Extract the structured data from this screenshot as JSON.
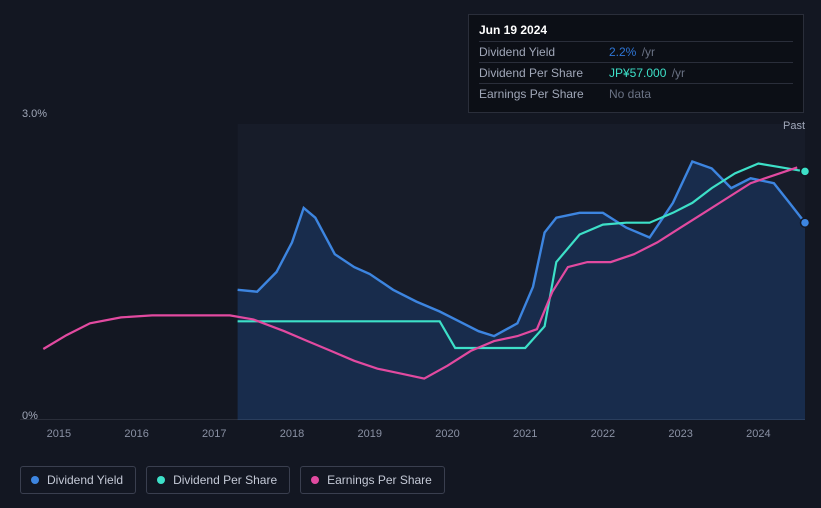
{
  "tooltip": {
    "date": "Jun 19 2024",
    "rows": [
      {
        "label": "Dividend Yield",
        "value": "2.2%",
        "unit": "/yr",
        "valueClass": "val-blue"
      },
      {
        "label": "Dividend Per Share",
        "value": "JP¥57.000",
        "unit": "/yr",
        "valueClass": "val-cyan"
      },
      {
        "label": "Earnings Per Share",
        "value": "No data",
        "unit": "",
        "valueClass": "val-nodata"
      }
    ]
  },
  "chart": {
    "y_top_label": "3.0%",
    "y_bot_label": "0%",
    "past_label": "Past",
    "x_range": [
      2014.5,
      2024.6
    ],
    "y_range": [
      0,
      3.0
    ],
    "x_ticks": [
      "2015",
      "2016",
      "2017",
      "2018",
      "2019",
      "2020",
      "2021",
      "2022",
      "2023",
      "2024"
    ],
    "shaded_from": 2017.3,
    "colors": {
      "yield": "#3d85e0",
      "dps": "#3de0c8",
      "eps": "#e24aa0",
      "yield_area": "rgba(33,105,200,0.22)",
      "grid": "#2a2e3a",
      "bg": "#131722"
    },
    "series": {
      "dividend_yield": [
        [
          2017.3,
          1.32
        ],
        [
          2017.55,
          1.3
        ],
        [
          2017.8,
          1.5
        ],
        [
          2018.0,
          1.8
        ],
        [
          2018.15,
          2.15
        ],
        [
          2018.3,
          2.05
        ],
        [
          2018.55,
          1.68
        ],
        [
          2018.8,
          1.55
        ],
        [
          2019.0,
          1.48
        ],
        [
          2019.3,
          1.32
        ],
        [
          2019.6,
          1.2
        ],
        [
          2019.9,
          1.1
        ],
        [
          2020.15,
          1.0
        ],
        [
          2020.4,
          0.9
        ],
        [
          2020.6,
          0.85
        ],
        [
          2020.9,
          0.98
        ],
        [
          2021.1,
          1.35
        ],
        [
          2021.25,
          1.9
        ],
        [
          2021.4,
          2.05
        ],
        [
          2021.7,
          2.1
        ],
        [
          2022.0,
          2.1
        ],
        [
          2022.3,
          1.95
        ],
        [
          2022.6,
          1.85
        ],
        [
          2022.9,
          2.2
        ],
        [
          2023.15,
          2.62
        ],
        [
          2023.4,
          2.55
        ],
        [
          2023.65,
          2.35
        ],
        [
          2023.9,
          2.45
        ],
        [
          2024.2,
          2.4
        ],
        [
          2024.4,
          2.2
        ],
        [
          2024.55,
          2.05
        ],
        [
          2024.6,
          2.0
        ]
      ],
      "dividend_per_share": [
        [
          2017.3,
          1.0
        ],
        [
          2018.0,
          1.0
        ],
        [
          2018.8,
          1.0
        ],
        [
          2019.5,
          1.0
        ],
        [
          2019.9,
          1.0
        ],
        [
          2020.1,
          0.73
        ],
        [
          2020.6,
          0.73
        ],
        [
          2021.0,
          0.73
        ],
        [
          2021.25,
          0.95
        ],
        [
          2021.4,
          1.6
        ],
        [
          2021.7,
          1.88
        ],
        [
          2022.0,
          1.98
        ],
        [
          2022.3,
          2.0
        ],
        [
          2022.6,
          2.0
        ],
        [
          2022.9,
          2.1
        ],
        [
          2023.15,
          2.2
        ],
        [
          2023.4,
          2.35
        ],
        [
          2023.7,
          2.5
        ],
        [
          2024.0,
          2.6
        ],
        [
          2024.3,
          2.56
        ],
        [
          2024.6,
          2.52
        ]
      ],
      "earnings_per_share": [
        [
          2014.8,
          0.72
        ],
        [
          2015.1,
          0.86
        ],
        [
          2015.4,
          0.98
        ],
        [
          2015.8,
          1.04
        ],
        [
          2016.2,
          1.06
        ],
        [
          2016.7,
          1.06
        ],
        [
          2017.2,
          1.06
        ],
        [
          2017.5,
          1.02
        ],
        [
          2017.9,
          0.9
        ],
        [
          2018.2,
          0.8
        ],
        [
          2018.5,
          0.7
        ],
        [
          2018.8,
          0.6
        ],
        [
          2019.1,
          0.52
        ],
        [
          2019.4,
          0.47
        ],
        [
          2019.7,
          0.42
        ],
        [
          2020.0,
          0.55
        ],
        [
          2020.3,
          0.7
        ],
        [
          2020.6,
          0.8
        ],
        [
          2020.9,
          0.85
        ],
        [
          2021.15,
          0.92
        ],
        [
          2021.35,
          1.3
        ],
        [
          2021.55,
          1.55
        ],
        [
          2021.8,
          1.6
        ],
        [
          2022.1,
          1.6
        ],
        [
          2022.4,
          1.68
        ],
        [
          2022.7,
          1.8
        ],
        [
          2023.0,
          1.95
        ],
        [
          2023.3,
          2.1
        ],
        [
          2023.6,
          2.25
        ],
        [
          2023.9,
          2.4
        ],
        [
          2024.2,
          2.48
        ],
        [
          2024.5,
          2.56
        ]
      ]
    },
    "end_dots": {
      "dividend_yield": [
        2024.6,
        2.0
      ],
      "dividend_per_share": [
        2024.6,
        2.52
      ]
    }
  },
  "legend": [
    {
      "label": "Dividend Yield",
      "color": "#3d85e0"
    },
    {
      "label": "Dividend Per Share",
      "color": "#3de0c8"
    },
    {
      "label": "Earnings Per Share",
      "color": "#e24aa0"
    }
  ]
}
